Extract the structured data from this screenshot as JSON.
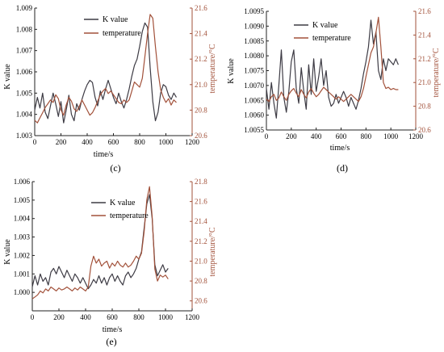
{
  "colors": {
    "k_value": "#3d3b44",
    "temperature": "#a2513a",
    "axis_left": "#222222",
    "axis_right": "#a2513a"
  },
  "chart_data": [
    {
      "type": "line",
      "panel_label": "(c)",
      "xlabel": "time/s",
      "ylabel_left": "K value",
      "ylabel_right": "temperature/°C",
      "xlim": [
        0,
        1200
      ],
      "ylim_left": [
        1.003,
        1.009
      ],
      "ylim_right": [
        20.6,
        21.6
      ],
      "x_ticks": [
        0,
        200,
        400,
        600,
        800,
        1000,
        1200
      ],
      "y_ticks_left": [
        1.003,
        1.004,
        1.005,
        1.006,
        1.007,
        1.008,
        1.009
      ],
      "y_ticks_right": [
        20.6,
        20.8,
        21.0,
        21.2,
        21.4,
        21.6
      ],
      "tick_labels_left": [
        "1.003",
        "1.004",
        "1.005",
        "1.006",
        "1.007",
        "1.008",
        "1.009"
      ],
      "tick_labels_right": [
        "20.6",
        "20.8",
        "21.0",
        "21.2",
        "21.4",
        "21.6"
      ],
      "legend": "top-left",
      "series": [
        {
          "name": "K value",
          "axis": "left",
          "x": [
            0,
            20,
            40,
            60,
            80,
            100,
            120,
            140,
            160,
            180,
            200,
            220,
            240,
            260,
            280,
            300,
            320,
            340,
            360,
            380,
            400,
            420,
            440,
            460,
            480,
            500,
            520,
            540,
            560,
            580,
            600,
            620,
            640,
            660,
            680,
            700,
            720,
            740,
            760,
            780,
            800,
            820,
            840,
            860,
            880,
            900,
            920,
            940,
            960,
            980,
            1000,
            1020,
            1040,
            1060,
            1080
          ],
          "y": [
            1.0042,
            1.0048,
            1.0043,
            1.005,
            1.0041,
            1.0038,
            1.0044,
            1.005,
            1.0045,
            1.0039,
            1.0046,
            1.0036,
            1.0042,
            1.0049,
            1.004,
            1.0037,
            1.0045,
            1.0042,
            1.0047,
            1.0051,
            1.0054,
            1.0056,
            1.0055,
            1.0048,
            1.0044,
            1.0051,
            1.0047,
            1.0052,
            1.0056,
            1.0052,
            1.0048,
            1.0045,
            1.005,
            1.0046,
            1.0043,
            1.0047,
            1.0052,
            1.0058,
            1.0063,
            1.0066,
            1.0072,
            1.0079,
            1.0083,
            1.0081,
            1.0062,
            1.0046,
            1.0037,
            1.0041,
            1.005,
            1.0054,
            1.0053,
            1.0049,
            1.0047,
            1.005,
            1.0048
          ]
        },
        {
          "name": "temperature",
          "axis": "right",
          "x": [
            0,
            20,
            40,
            60,
            80,
            100,
            120,
            140,
            160,
            180,
            200,
            220,
            240,
            260,
            280,
            300,
            320,
            340,
            360,
            380,
            400,
            420,
            440,
            460,
            480,
            500,
            520,
            540,
            560,
            580,
            600,
            620,
            640,
            660,
            680,
            700,
            720,
            740,
            760,
            780,
            800,
            820,
            840,
            860,
            880,
            900,
            920,
            940,
            960,
            980,
            1000,
            1020,
            1040,
            1060,
            1080
          ],
          "y": [
            20.72,
            20.7,
            20.74,
            20.78,
            20.82,
            20.85,
            20.88,
            20.86,
            20.92,
            20.89,
            20.8,
            20.76,
            20.84,
            20.9,
            20.87,
            20.81,
            20.79,
            20.83,
            20.88,
            20.84,
            20.8,
            20.76,
            20.78,
            20.82,
            20.87,
            20.92,
            20.95,
            20.97,
            20.93,
            20.95,
            20.92,
            20.89,
            20.86,
            20.85,
            20.88,
            20.86,
            20.88,
            20.95,
            21.02,
            21.0,
            20.98,
            21.05,
            21.22,
            21.4,
            21.55,
            21.52,
            21.3,
            21.1,
            20.96,
            20.9,
            20.86,
            20.89,
            20.84,
            20.88,
            20.86
          ]
        }
      ]
    },
    {
      "type": "line",
      "panel_label": "(d)",
      "xlabel": "time/s",
      "ylabel_left": "K value",
      "ylabel_right": "temperature/°C",
      "xlim": [
        0,
        1200
      ],
      "ylim_left": [
        1.0055,
        1.0095
      ],
      "ylim_right": [
        20.6,
        21.6
      ],
      "x_ticks": [
        0,
        200,
        400,
        600,
        800,
        1000,
        1200
      ],
      "y_ticks_left": [
        1.0055,
        1.006,
        1.0065,
        1.007,
        1.0075,
        1.008,
        1.0085,
        1.009,
        1.0095
      ],
      "y_ticks_right": [
        20.6,
        20.8,
        21.0,
        21.2,
        21.4,
        21.6
      ],
      "tick_labels_left": [
        "1.0055",
        "1.0060",
        "1.0065",
        "1.0070",
        "1.0075",
        "1.0080",
        "1.0085",
        "1.0090",
        "1.0095"
      ],
      "tick_labels_right": [
        "20.6",
        "20.8",
        "21.0",
        "21.2",
        "21.4",
        "21.6"
      ],
      "legend": "top-left",
      "series": [
        {
          "name": "K value",
          "axis": "left",
          "x": [
            0,
            20,
            40,
            60,
            80,
            100,
            120,
            140,
            160,
            180,
            200,
            220,
            240,
            260,
            280,
            300,
            320,
            340,
            360,
            380,
            400,
            420,
            440,
            460,
            480,
            500,
            520,
            540,
            560,
            580,
            600,
            620,
            640,
            660,
            680,
            700,
            720,
            740,
            760,
            780,
            800,
            820,
            840,
            860,
            880,
            900,
            920,
            940,
            960,
            980,
            1000,
            1020,
            1040,
            1060
          ],
          "y": [
            1.0069,
            1.0062,
            1.0071,
            1.0064,
            1.0059,
            1.007,
            1.0082,
            1.0066,
            1.0061,
            1.0068,
            1.0078,
            1.0082,
            1.0069,
            1.0064,
            1.0076,
            1.0068,
            1.0062,
            1.0077,
            1.0067,
            1.0079,
            1.0068,
            1.0073,
            1.0079,
            1.007,
            1.0075,
            1.0066,
            1.0063,
            1.0064,
            1.0067,
            1.0064,
            1.0066,
            1.0068,
            1.0066,
            1.0063,
            1.0066,
            1.0064,
            1.0062,
            1.0065,
            1.0069,
            1.0074,
            1.0078,
            1.0083,
            1.0092,
            1.0084,
            1.0088,
            1.0075,
            1.0072,
            1.0079,
            1.0075,
            1.0079,
            1.0078,
            1.0077,
            1.0079,
            1.0077
          ]
        },
        {
          "name": "temperature",
          "axis": "right",
          "x": [
            0,
            20,
            40,
            60,
            80,
            100,
            120,
            140,
            160,
            180,
            200,
            220,
            240,
            260,
            280,
            300,
            320,
            340,
            360,
            380,
            400,
            420,
            440,
            460,
            480,
            500,
            520,
            540,
            560,
            580,
            600,
            620,
            640,
            660,
            680,
            700,
            720,
            740,
            760,
            780,
            800,
            820,
            840,
            860,
            880,
            900,
            920,
            940,
            960,
            980,
            1000,
            1020,
            1040,
            1060
          ],
          "y": [
            20.86,
            20.84,
            20.88,
            20.9,
            20.85,
            20.87,
            20.92,
            20.88,
            20.85,
            20.9,
            20.93,
            20.95,
            20.91,
            20.88,
            20.94,
            20.9,
            20.87,
            20.92,
            20.95,
            20.91,
            20.88,
            20.9,
            20.93,
            20.96,
            20.94,
            20.92,
            20.9,
            20.88,
            20.86,
            20.88,
            20.86,
            20.84,
            20.86,
            20.88,
            20.9,
            20.88,
            20.86,
            20.84,
            20.88,
            20.95,
            21.05,
            21.15,
            21.25,
            21.3,
            21.42,
            21.55,
            21.3,
            21.0,
            20.95,
            20.96,
            20.94,
            20.95,
            20.94,
            20.94
          ]
        }
      ]
    },
    {
      "type": "line",
      "panel_label": "(e)",
      "xlabel": "time/s",
      "ylabel_left": "K value",
      "ylabel_right": "temperature/°C",
      "xlim": [
        0,
        1200
      ],
      "ylim_left": [
        0.999,
        1.006
      ],
      "ylim_right": [
        20.5,
        21.8
      ],
      "x_ticks": [
        0,
        200,
        400,
        600,
        800,
        1000,
        1200
      ],
      "y_ticks_left": [
        1.0,
        1.001,
        1.002,
        1.003,
        1.004,
        1.005,
        1.006
      ],
      "y_ticks_right": [
        20.6,
        20.8,
        21.0,
        21.2,
        21.4,
        21.6,
        21.8
      ],
      "tick_labels_left": [
        "1.000",
        "1.001",
        "1.002",
        "1.003",
        "1.004",
        "1.005",
        "1.006"
      ],
      "tick_labels_right": [
        "20.6",
        "20.8",
        "21.0",
        "21.2",
        "21.4",
        "21.6",
        "21.8"
      ],
      "legend": "top-left",
      "series": [
        {
          "name": "K value",
          "axis": "left",
          "x": [
            0,
            20,
            40,
            60,
            80,
            100,
            120,
            140,
            160,
            180,
            200,
            220,
            240,
            260,
            280,
            300,
            320,
            340,
            360,
            380,
            400,
            420,
            440,
            460,
            480,
            500,
            520,
            540,
            560,
            580,
            600,
            620,
            640,
            660,
            680,
            700,
            720,
            740,
            760,
            780,
            800,
            820,
            840,
            860,
            880,
            900,
            920,
            940,
            960,
            980,
            1000,
            1020
          ],
          "y": [
            1.0003,
            1.0009,
            1.0004,
            1.001,
            1.0006,
            1.0008,
            1.0004,
            1.0011,
            1.0013,
            1.001,
            1.0014,
            1.0011,
            1.0008,
            1.0012,
            1.0009,
            1.0006,
            1.001,
            1.0008,
            1.0005,
            1.0008,
            1.0005,
            1.0002,
            1.0004,
            1.0007,
            1.0005,
            1.0009,
            1.0005,
            1.0008,
            1.0004,
            1.0008,
            1.001,
            1.0006,
            1.0009,
            1.0006,
            1.0004,
            1.0009,
            1.0011,
            1.0008,
            1.001,
            1.0013,
            1.0018,
            1.0022,
            1.0035,
            1.0048,
            1.0053,
            1.004,
            1.0015,
            1.0009,
            1.0012,
            1.0015,
            1.0011,
            1.0013
          ]
        },
        {
          "name": "temperature",
          "axis": "right",
          "x": [
            0,
            20,
            40,
            60,
            80,
            100,
            120,
            140,
            160,
            180,
            200,
            220,
            240,
            260,
            280,
            300,
            320,
            340,
            360,
            380,
            400,
            420,
            440,
            460,
            480,
            500,
            520,
            540,
            560,
            580,
            600,
            620,
            640,
            660,
            680,
            700,
            720,
            740,
            760,
            780,
            800,
            820,
            840,
            860,
            880,
            900,
            920,
            940,
            960,
            980,
            1000,
            1020
          ],
          "y": [
            20.62,
            20.64,
            20.66,
            20.7,
            20.68,
            20.72,
            20.7,
            20.74,
            20.72,
            20.7,
            20.73,
            20.71,
            20.72,
            20.74,
            20.72,
            20.7,
            20.73,
            20.71,
            20.74,
            20.72,
            20.7,
            20.74,
            20.95,
            21.05,
            20.98,
            21.02,
            20.95,
            20.98,
            21.0,
            20.93,
            20.98,
            20.95,
            21.0,
            20.96,
            20.94,
            20.98,
            20.94,
            20.96,
            21.0,
            21.05,
            21.02,
            21.08,
            21.3,
            21.62,
            21.75,
            21.45,
            20.92,
            20.8,
            20.86,
            20.84,
            20.86,
            20.82
          ]
        }
      ]
    }
  ]
}
